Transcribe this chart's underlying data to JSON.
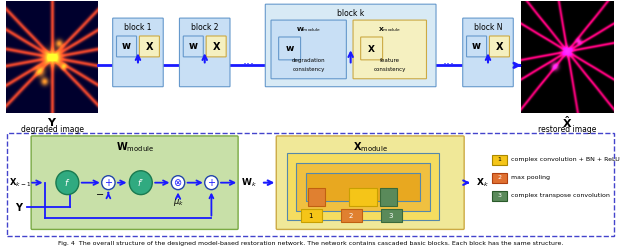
{
  "fig_caption": "Fig. 4  The overall structure of the designed model-based restoration network. The network contains cascaded basic blocks. Each block has the same structure.",
  "block_light_blue_bg": "#c8dff5",
  "block_light_blue_border": "#6699cc",
  "block_yellow_bg": "#f5f0c0",
  "block_yellow_border": "#ccaa44",
  "block_k_bg": "#d8eaf5",
  "block_k_border": "#6699cc",
  "w_module_bg": "#c8e0a8",
  "w_module_border": "#7aaa44",
  "x_module_bg": "#f0e898",
  "x_module_border": "#ccaa44",
  "bottom_border_color": "#4444cc",
  "arrow_color": "#1a1aff",
  "legend_yellow_bg": "#f5c518",
  "legend_orange_bg": "#e07030",
  "legend_green_bg": "#5a8a5a",
  "legend1_text": "complex convolution + BN + ReLU",
  "legend2_text": "max pooling",
  "legend3_text": "complex transpose convolution",
  "figsize": [
    6.4,
    2.49
  ],
  "dpi": 100
}
